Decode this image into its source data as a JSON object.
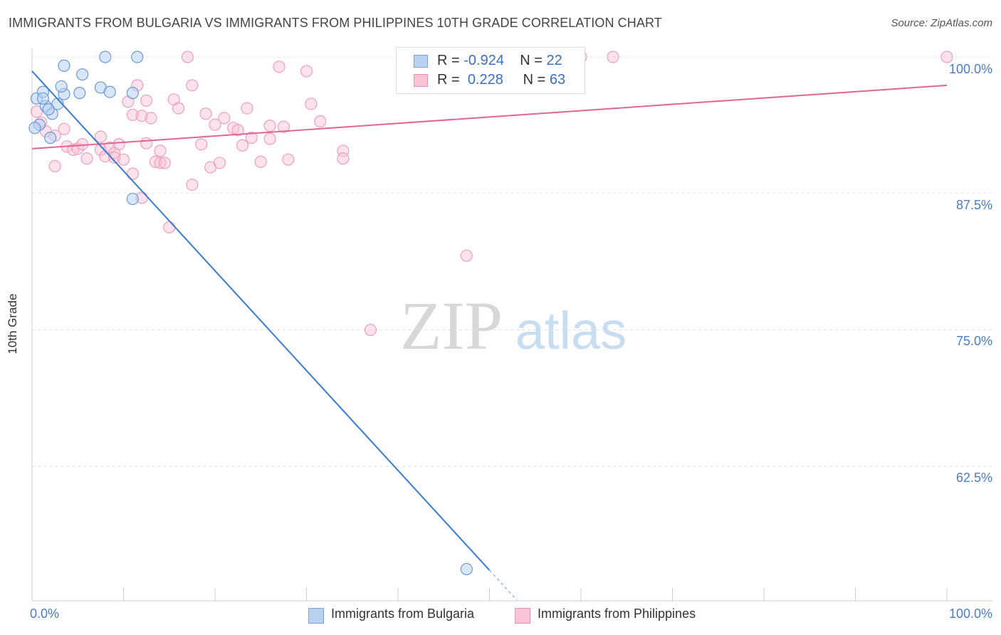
{
  "header": {
    "title": "IMMIGRANTS FROM BULGARIA VS IMMIGRANTS FROM PHILIPPINES 10TH GRADE CORRELATION CHART",
    "source": "Source: ZipAtlas.com"
  },
  "watermark": {
    "zip": "ZIP",
    "atlas": "atlas"
  },
  "legend": {
    "bulgaria": {
      "r_label": "R = ",
      "r_value": "-0.924",
      "n_label": "N = ",
      "n_value": "22"
    },
    "philippines": {
      "r_label": "R = ",
      "r_value": "0.228",
      "n_label": "N = ",
      "n_value": "63"
    }
  },
  "chart_data": {
    "type": "scatter",
    "title": "IMMIGRANTS FROM BULGARIA VS IMMIGRANTS FROM PHILIPPINES 10TH GRADE CORRELATION CHART",
    "xlabel": "",
    "ylabel": "10th Grade",
    "xlim": [
      0,
      100
    ],
    "ylim": [
      50,
      101.5
    ],
    "x_tick_labels": [
      "0.0%",
      "100.0%"
    ],
    "y_ticks": [
      {
        "value": 100,
        "label": "100.0%"
      },
      {
        "value": 87.5,
        "label": "87.5%"
      },
      {
        "value": 75,
        "label": "75.0%"
      },
      {
        "value": 62.5,
        "label": "62.5%"
      }
    ],
    "colors": {
      "bulgaria": "#4a86d8",
      "philippines": "#e8729a"
    },
    "series": [
      {
        "name": "Immigrants from Bulgaria",
        "R": -0.924,
        "N": 22,
        "points": [
          [
            0.5,
            96.2
          ],
          [
            1.5,
            95.5
          ],
          [
            1.2,
            96.8
          ],
          [
            0.8,
            93.8
          ],
          [
            2.2,
            94.8
          ],
          [
            2.0,
            92.6
          ],
          [
            3.5,
            96.6
          ],
          [
            3.2,
            97.3
          ],
          [
            2.8,
            95.7
          ],
          [
            3.5,
            99.2
          ],
          [
            5.5,
            98.4
          ],
          [
            5.2,
            96.7
          ],
          [
            7.5,
            97.2
          ],
          [
            8.0,
            100.0
          ],
          [
            8.5,
            96.8
          ],
          [
            11.0,
            96.7
          ],
          [
            11.5,
            100.0
          ],
          [
            1.8,
            95.2
          ],
          [
            1.2,
            96.2
          ],
          [
            11.0,
            87.0
          ],
          [
            0.3,
            93.5
          ],
          [
            47.5,
            53.1
          ]
        ],
        "trend": {
          "x0": 0,
          "y0": 98.7,
          "x1": 50,
          "y1": 53.0,
          "dash_to_x": 53
        }
      },
      {
        "name": "Immigrants from Philippines",
        "R": 0.228,
        "N": 63,
        "points": [
          [
            0.5,
            95.0
          ],
          [
            1.5,
            93.2
          ],
          [
            1.0,
            94.0
          ],
          [
            2.5,
            92.8
          ],
          [
            2.5,
            90.0
          ],
          [
            3.5,
            93.4
          ],
          [
            3.8,
            91.8
          ],
          [
            4.5,
            91.5
          ],
          [
            5.0,
            91.6
          ],
          [
            5.5,
            92.0
          ],
          [
            6.0,
            90.7
          ],
          [
            7.5,
            92.7
          ],
          [
            7.5,
            91.5
          ],
          [
            8.0,
            90.9
          ],
          [
            8.5,
            91.7
          ],
          [
            9.0,
            91.2
          ],
          [
            9.5,
            92.0
          ],
          [
            9.0,
            90.8
          ],
          [
            10.0,
            90.6
          ],
          [
            10.5,
            95.9
          ],
          [
            11.0,
            94.7
          ],
          [
            11.5,
            97.4
          ],
          [
            12.0,
            94.6
          ],
          [
            12.5,
            96.0
          ],
          [
            11.0,
            89.3
          ],
          [
            12.0,
            87.1
          ],
          [
            12.5,
            92.1
          ],
          [
            13.0,
            94.4
          ],
          [
            13.5,
            90.4
          ],
          [
            14.0,
            90.3
          ],
          [
            14.5,
            90.3
          ],
          [
            14.0,
            91.4
          ],
          [
            15.0,
            84.4
          ],
          [
            15.5,
            96.1
          ],
          [
            16.0,
            95.3
          ],
          [
            17.0,
            100.0
          ],
          [
            17.5,
            88.3
          ],
          [
            17.5,
            97.4
          ],
          [
            18.5,
            92.0
          ],
          [
            19.0,
            94.8
          ],
          [
            19.5,
            89.9
          ],
          [
            20.0,
            93.8
          ],
          [
            20.5,
            90.3
          ],
          [
            21.0,
            94.4
          ],
          [
            22.0,
            93.5
          ],
          [
            22.5,
            93.3
          ],
          [
            23.0,
            91.9
          ],
          [
            23.5,
            95.3
          ],
          [
            24.0,
            92.6
          ],
          [
            25.0,
            90.4
          ],
          [
            26.0,
            92.5
          ],
          [
            26.0,
            93.7
          ],
          [
            27.0,
            99.1
          ],
          [
            27.5,
            93.6
          ],
          [
            28.0,
            90.6
          ],
          [
            30.0,
            98.7
          ],
          [
            30.5,
            95.7
          ],
          [
            31.5,
            94.1
          ],
          [
            34.0,
            91.4
          ],
          [
            34.0,
            90.7
          ],
          [
            37.0,
            75.0
          ],
          [
            47.5,
            81.8
          ],
          [
            60.0,
            100.0
          ]
        ],
        "extra_points": [
          [
            63.5,
            100.0
          ],
          [
            100.0,
            100.0
          ]
        ],
        "trend": {
          "x0": 0,
          "y0": 91.6,
          "x1": 100,
          "y1": 97.4
        }
      }
    ]
  },
  "axis": {
    "ylabel": "10th Grade",
    "x_left": "0.0%",
    "x_right": "100.0%",
    "y_100": "100.0%",
    "y_875": "87.5%",
    "y_75": "75.0%",
    "y_625": "62.5%"
  },
  "bottom_legend": {
    "bulgaria": "Immigrants from Bulgaria",
    "philippines": "Immigrants from Philippines"
  }
}
